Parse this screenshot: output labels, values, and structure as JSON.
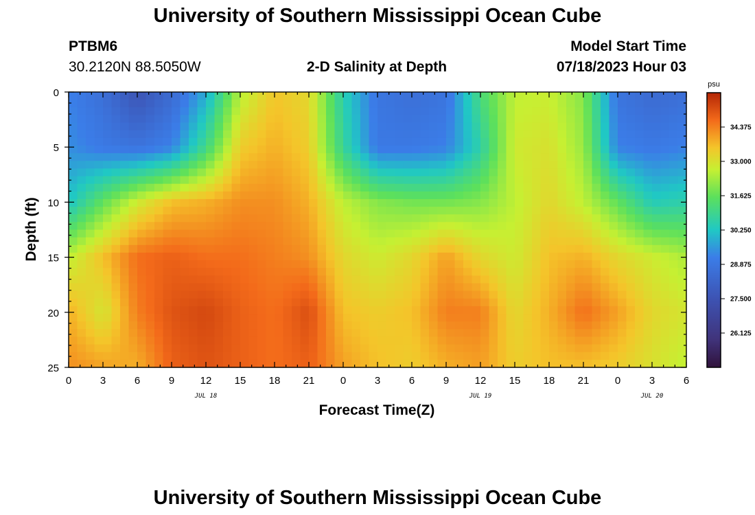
{
  "page": {
    "title": "University of Southern Mississippi Ocean Cube",
    "title_bottom": "University of Southern Mississippi Ocean Cube",
    "station": "PTBM6",
    "coords": "30.2120N  88.5050W",
    "subtitle": "2-D Salinity at Depth",
    "model_label": "Model Start Time",
    "model_time": "07/18/2023 Hour 03"
  },
  "chart_data": {
    "type": "heatmap",
    "title": "2-D Salinity at Depth",
    "xlabel": "Forecast Time(Z)",
    "ylabel": "Depth (ft)",
    "x_tick_labels": [
      "0",
      "3",
      "6",
      "9",
      "12",
      "15",
      "18",
      "21",
      "0",
      "3",
      "6",
      "9",
      "12",
      "15",
      "18",
      "21",
      "0",
      "3",
      "6"
    ],
    "x_hours_range": [
      0,
      54
    ],
    "date_labels": [
      {
        "text": "JUL 18",
        "hour": 12
      },
      {
        "text": "JUL 19",
        "hour": 36
      },
      {
        "text": "JUL 20",
        "hour": 51
      }
    ],
    "y_ticks": [
      0,
      5,
      10,
      15,
      20,
      25
    ],
    "ylim": [
      0,
      25
    ],
    "colorbar": {
      "unit": "psu",
      "ticks": [
        "34.375",
        "33.000",
        "31.625",
        "30.250",
        "28.875",
        "27.500",
        "26.125"
      ],
      "range": [
        24.75,
        35.75
      ]
    },
    "depths": [
      0,
      5,
      10,
      15,
      20,
      25
    ],
    "hours": [
      0,
      3,
      6,
      9,
      12,
      15,
      18,
      21,
      24,
      27,
      30,
      33,
      36,
      39,
      42,
      45,
      48,
      51,
      54
    ],
    "values": [
      [
        29.2,
        28.6,
        27.5,
        28.4,
        29.8,
        32.5,
        33.5,
        33.2,
        30.5,
        28.9,
        28.6,
        28.8,
        31.2,
        32.6,
        32.7,
        32.0,
        28.8,
        28.4,
        28.6
      ],
      [
        29.4,
        29.0,
        28.8,
        29.2,
        31.0,
        33.4,
        33.8,
        33.4,
        30.8,
        29.0,
        29.0,
        29.2,
        30.6,
        32.8,
        33.0,
        32.2,
        29.2,
        29.0,
        29.2
      ],
      [
        30.2,
        31.6,
        32.8,
        33.6,
        33.8,
        34.2,
        34.2,
        33.8,
        32.6,
        32.0,
        31.8,
        31.8,
        32.0,
        32.6,
        33.2,
        32.6,
        31.6,
        30.4,
        30.6
      ],
      [
        32.6,
        33.6,
        34.6,
        34.8,
        34.6,
        34.6,
        34.4,
        34.2,
        33.2,
        32.8,
        33.2,
        34.0,
        33.2,
        32.8,
        33.6,
        33.8,
        33.2,
        32.8,
        32.4
      ],
      [
        33.8,
        32.9,
        34.4,
        35.0,
        35.2,
        34.8,
        34.6,
        35.1,
        33.6,
        33.4,
        33.6,
        34.4,
        34.4,
        33.2,
        33.8,
        34.6,
        34.0,
        33.2,
        32.9
      ],
      [
        34.2,
        34.0,
        33.8,
        34.8,
        35.0,
        34.8,
        34.6,
        34.8,
        34.0,
        33.6,
        33.4,
        33.8,
        34.0,
        33.4,
        33.6,
        33.6,
        33.4,
        33.0,
        32.6
      ]
    ]
  }
}
